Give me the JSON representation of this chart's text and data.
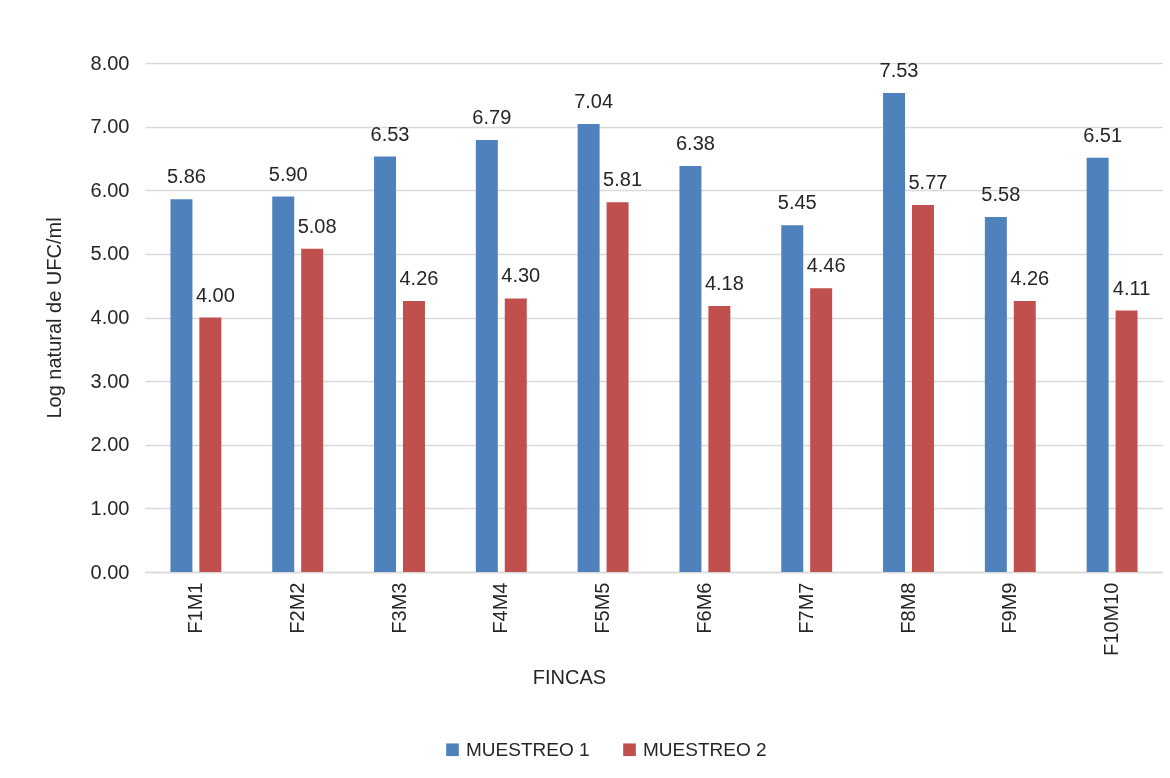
{
  "chart_data": {
    "type": "bar",
    "xlabel": "FINCAS",
    "ylabel": "Log natural de UFC/ml",
    "categories": [
      "F1M1",
      "F2M2",
      "F3M3",
      "F4M4",
      "F5M5",
      "F6M6",
      "F7M7",
      "F8M8",
      "F9M9",
      "F10M10"
    ],
    "series": [
      {
        "name": "MUESTREO 1",
        "color": "#4f81bd",
        "values": [
          5.86,
          5.9,
          6.53,
          6.79,
          7.04,
          6.38,
          5.45,
          7.53,
          5.58,
          6.51
        ],
        "value_labels": [
          "5.86",
          "5.90",
          "6.53",
          "6.79",
          "7.04",
          "6.38",
          "5.45",
          "7.53",
          "5.58",
          "6.51"
        ]
      },
      {
        "name": "MUESTREO 2",
        "color": "#c0504d",
        "values": [
          4.0,
          5.08,
          4.26,
          4.3,
          5.81,
          4.18,
          4.46,
          5.77,
          4.26,
          4.11
        ],
        "value_labels": [
          "4.00",
          "5.08",
          "4.26",
          "4.30",
          "5.81",
          "4.18",
          "4.46",
          "5.77",
          "4.26",
          "4.11"
        ]
      }
    ],
    "ylim": [
      0,
      8
    ],
    "yticks": [
      {
        "value": 0,
        "label": "0.00"
      },
      {
        "value": 1,
        "label": "1.00"
      },
      {
        "value": 2,
        "label": "2.00"
      },
      {
        "value": 3,
        "label": "3.00"
      },
      {
        "value": 4,
        "label": "4.00"
      },
      {
        "value": 5,
        "label": "5.00"
      },
      {
        "value": 6,
        "label": "6.00"
      },
      {
        "value": 7,
        "label": "7.00"
      },
      {
        "value": 8,
        "label": "8.00"
      }
    ],
    "grid": "y",
    "legend": "bottom"
  }
}
